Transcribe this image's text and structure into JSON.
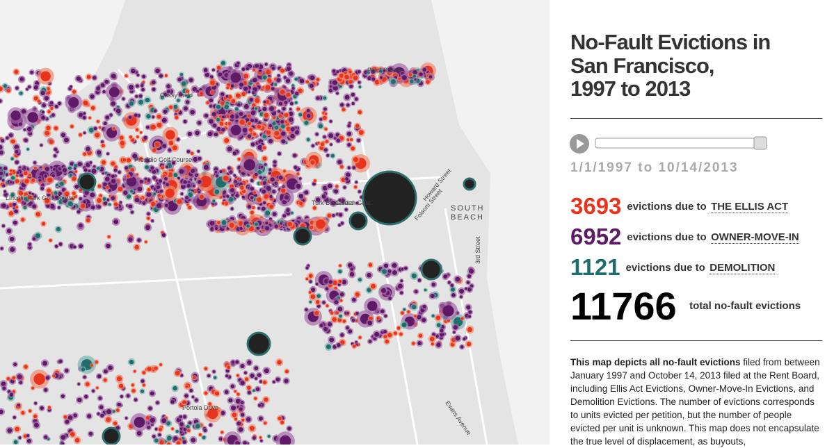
{
  "header": {
    "title_lines": [
      "No-Fault Evictions in",
      "San Francisco,",
      "1997 to 2013"
    ],
    "date_range": "1/1/1997 to 10/14/2013"
  },
  "stats": [
    {
      "count": 3693,
      "prefix": "evictions due to",
      "link": "THE ELLIS ACT",
      "color": "#e8341c"
    },
    {
      "count": 6952,
      "prefix": "evictions due to",
      "link": "OWNER-MOVE-IN",
      "color": "#5e1a66"
    },
    {
      "count": 1121,
      "prefix": "evictions due to",
      "link": "DEMOLITION",
      "color": "#1f6e6c"
    }
  ],
  "total": {
    "count": 11766,
    "label": "total no-fault evictions"
  },
  "description": {
    "bold": "This map depicts all no-fault evictions",
    "text": " filed from between January 1997 and October 14, 2013 filed at the Rent Board, including Ellis Act Evictions, Owner-Move-In Evictions, and Demolition Evictions. The number of evictions corresponds to units evicted per petition, but the number of people evicted per unit is unknown. This map does not encapsulate the true level of displacement, as buyouts,"
  },
  "map_labels": [
    "Point Street",
    "Crissy Field",
    "Presidio Golf Course",
    "Lincoln Park Golf Course",
    "Turk Boulevard",
    "Golden Gate",
    "Howard Street",
    "Folsom Street",
    "SOUTH",
    "BEACH",
    "3rd Street",
    "Evans Avenue",
    "Portola Drive"
  ]
}
